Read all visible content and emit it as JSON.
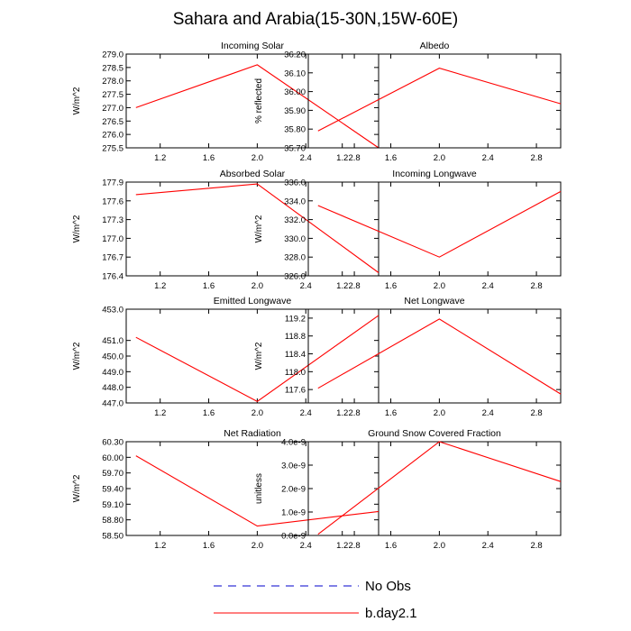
{
  "title": "Sahara and Arabia(15-30N,15W-60E)",
  "series_color": "#ff0000",
  "obs_color": "#0000cd",
  "legend": [
    {
      "label": "No Obs",
      "style": "dashed",
      "color": "#0000cd"
    },
    {
      "label": "b.day2.1",
      "style": "solid",
      "color": "#ff0000"
    }
  ],
  "chart_data": [
    {
      "type": "line",
      "title": "Incoming Solar",
      "ylabel": "W/m^2",
      "x": [
        1.0,
        2.0,
        3.0
      ],
      "values": [
        277.0,
        278.6,
        275.5
      ],
      "xlim": [
        0.92,
        3.0
      ],
      "ylim": [
        275.5,
        279.0
      ],
      "xticks": [
        "1.2",
        "1.6",
        "2.0",
        "2.4",
        "2.8"
      ],
      "yticks": [
        "275.5",
        "276.0",
        "276.5",
        "277.0",
        "277.5",
        "278.0",
        "278.5",
        "279.0"
      ]
    },
    {
      "type": "line",
      "title": "Albedo",
      "ylabel": "% reflected",
      "x": [
        1.0,
        2.0,
        3.0
      ],
      "values": [
        35.79,
        36.125,
        35.935
      ],
      "xlim": [
        0.92,
        3.0
      ],
      "ylim": [
        35.7,
        36.2
      ],
      "xticks": [
        "1.2",
        "1.6",
        "2.0",
        "2.4",
        "2.8"
      ],
      "yticks": [
        "35.70",
        "35.80",
        "35.90",
        "36.00",
        "36.10",
        "36.20"
      ]
    },
    {
      "type": "line",
      "title": "Absorbed Solar",
      "ylabel": "W/m^2",
      "x": [
        1.0,
        2.0,
        3.0
      ],
      "values": [
        177.7,
        177.87,
        176.45
      ],
      "xlim": [
        0.92,
        3.0
      ],
      "ylim": [
        176.4,
        177.9
      ],
      "xticks": [
        "1.2",
        "1.6",
        "2.0",
        "2.4",
        "2.8"
      ],
      "yticks": [
        "176.4",
        "176.7",
        "177.0",
        "177.3",
        "177.6",
        "177.9"
      ]
    },
    {
      "type": "line",
      "title": "Incoming Longwave",
      "ylabel": "W/m^2",
      "x": [
        1.0,
        2.0,
        3.0
      ],
      "values": [
        333.5,
        328.0,
        335.0
      ],
      "xlim": [
        0.92,
        3.0
      ],
      "ylim": [
        326.0,
        336.0
      ],
      "xticks": [
        "1.2",
        "1.6",
        "2.0",
        "2.4",
        "2.8"
      ],
      "yticks": [
        "326.0",
        "328.0",
        "330.0",
        "332.0",
        "334.0",
        "336.0"
      ]
    },
    {
      "type": "line",
      "title": "Emitted Longwave",
      "ylabel": "W/m^2",
      "x": [
        1.0,
        2.0,
        3.0
      ],
      "values": [
        451.2,
        447.1,
        452.6
      ],
      "xlim": [
        0.92,
        3.0
      ],
      "ylim": [
        447.0,
        453.0
      ],
      "xticks": [
        "1.2",
        "1.6",
        "2.0",
        "2.4",
        "2.8"
      ],
      "yticks": [
        "447.0",
        "448.0",
        "449.0",
        "450.0",
        "451.0",
        "453.0"
      ]
    },
    {
      "type": "line",
      "title": "Net Longwave",
      "ylabel": "W/m^2",
      "x": [
        1.0,
        2.0,
        3.0
      ],
      "values": [
        117.63,
        119.18,
        117.5
      ],
      "xlim": [
        0.92,
        3.0
      ],
      "ylim": [
        117.3,
        119.4
      ],
      "xticks": [
        "1.2",
        "1.6",
        "2.0",
        "2.4",
        "2.8"
      ],
      "yticks": [
        "117.6",
        "118.0",
        "118.4",
        "118.8",
        "119.2"
      ]
    },
    {
      "type": "line",
      "title": "Net Radiation",
      "ylabel": "W/m^2",
      "x": [
        1.0,
        2.0,
        3.0
      ],
      "values": [
        60.03,
        58.68,
        58.96
      ],
      "xlim": [
        0.92,
        3.0
      ],
      "ylim": [
        58.5,
        60.3
      ],
      "xticks": [
        "1.2",
        "1.6",
        "2.0",
        "2.4",
        "2.8"
      ],
      "yticks": [
        "58.50",
        "58.80",
        "59.10",
        "59.40",
        "59.70",
        "60.00",
        "60.30"
      ]
    },
    {
      "type": "line",
      "title": "Ground Snow Covered Fraction",
      "ylabel": "unitless",
      "x": [
        1.0,
        2.0,
        3.0
      ],
      "values": [
        5e-11,
        4e-09,
        2.3e-09
      ],
      "xlim": [
        0.92,
        3.0
      ],
      "ylim": [
        0.0,
        4e-09
      ],
      "xticks": [
        "1.2",
        "1.6",
        "2.0",
        "2.4",
        "2.8"
      ],
      "yticks": [
        "0.0e-9",
        "1.0e-9",
        "2.0e-9",
        "3.0e-9",
        "4.0e-9"
      ]
    }
  ]
}
